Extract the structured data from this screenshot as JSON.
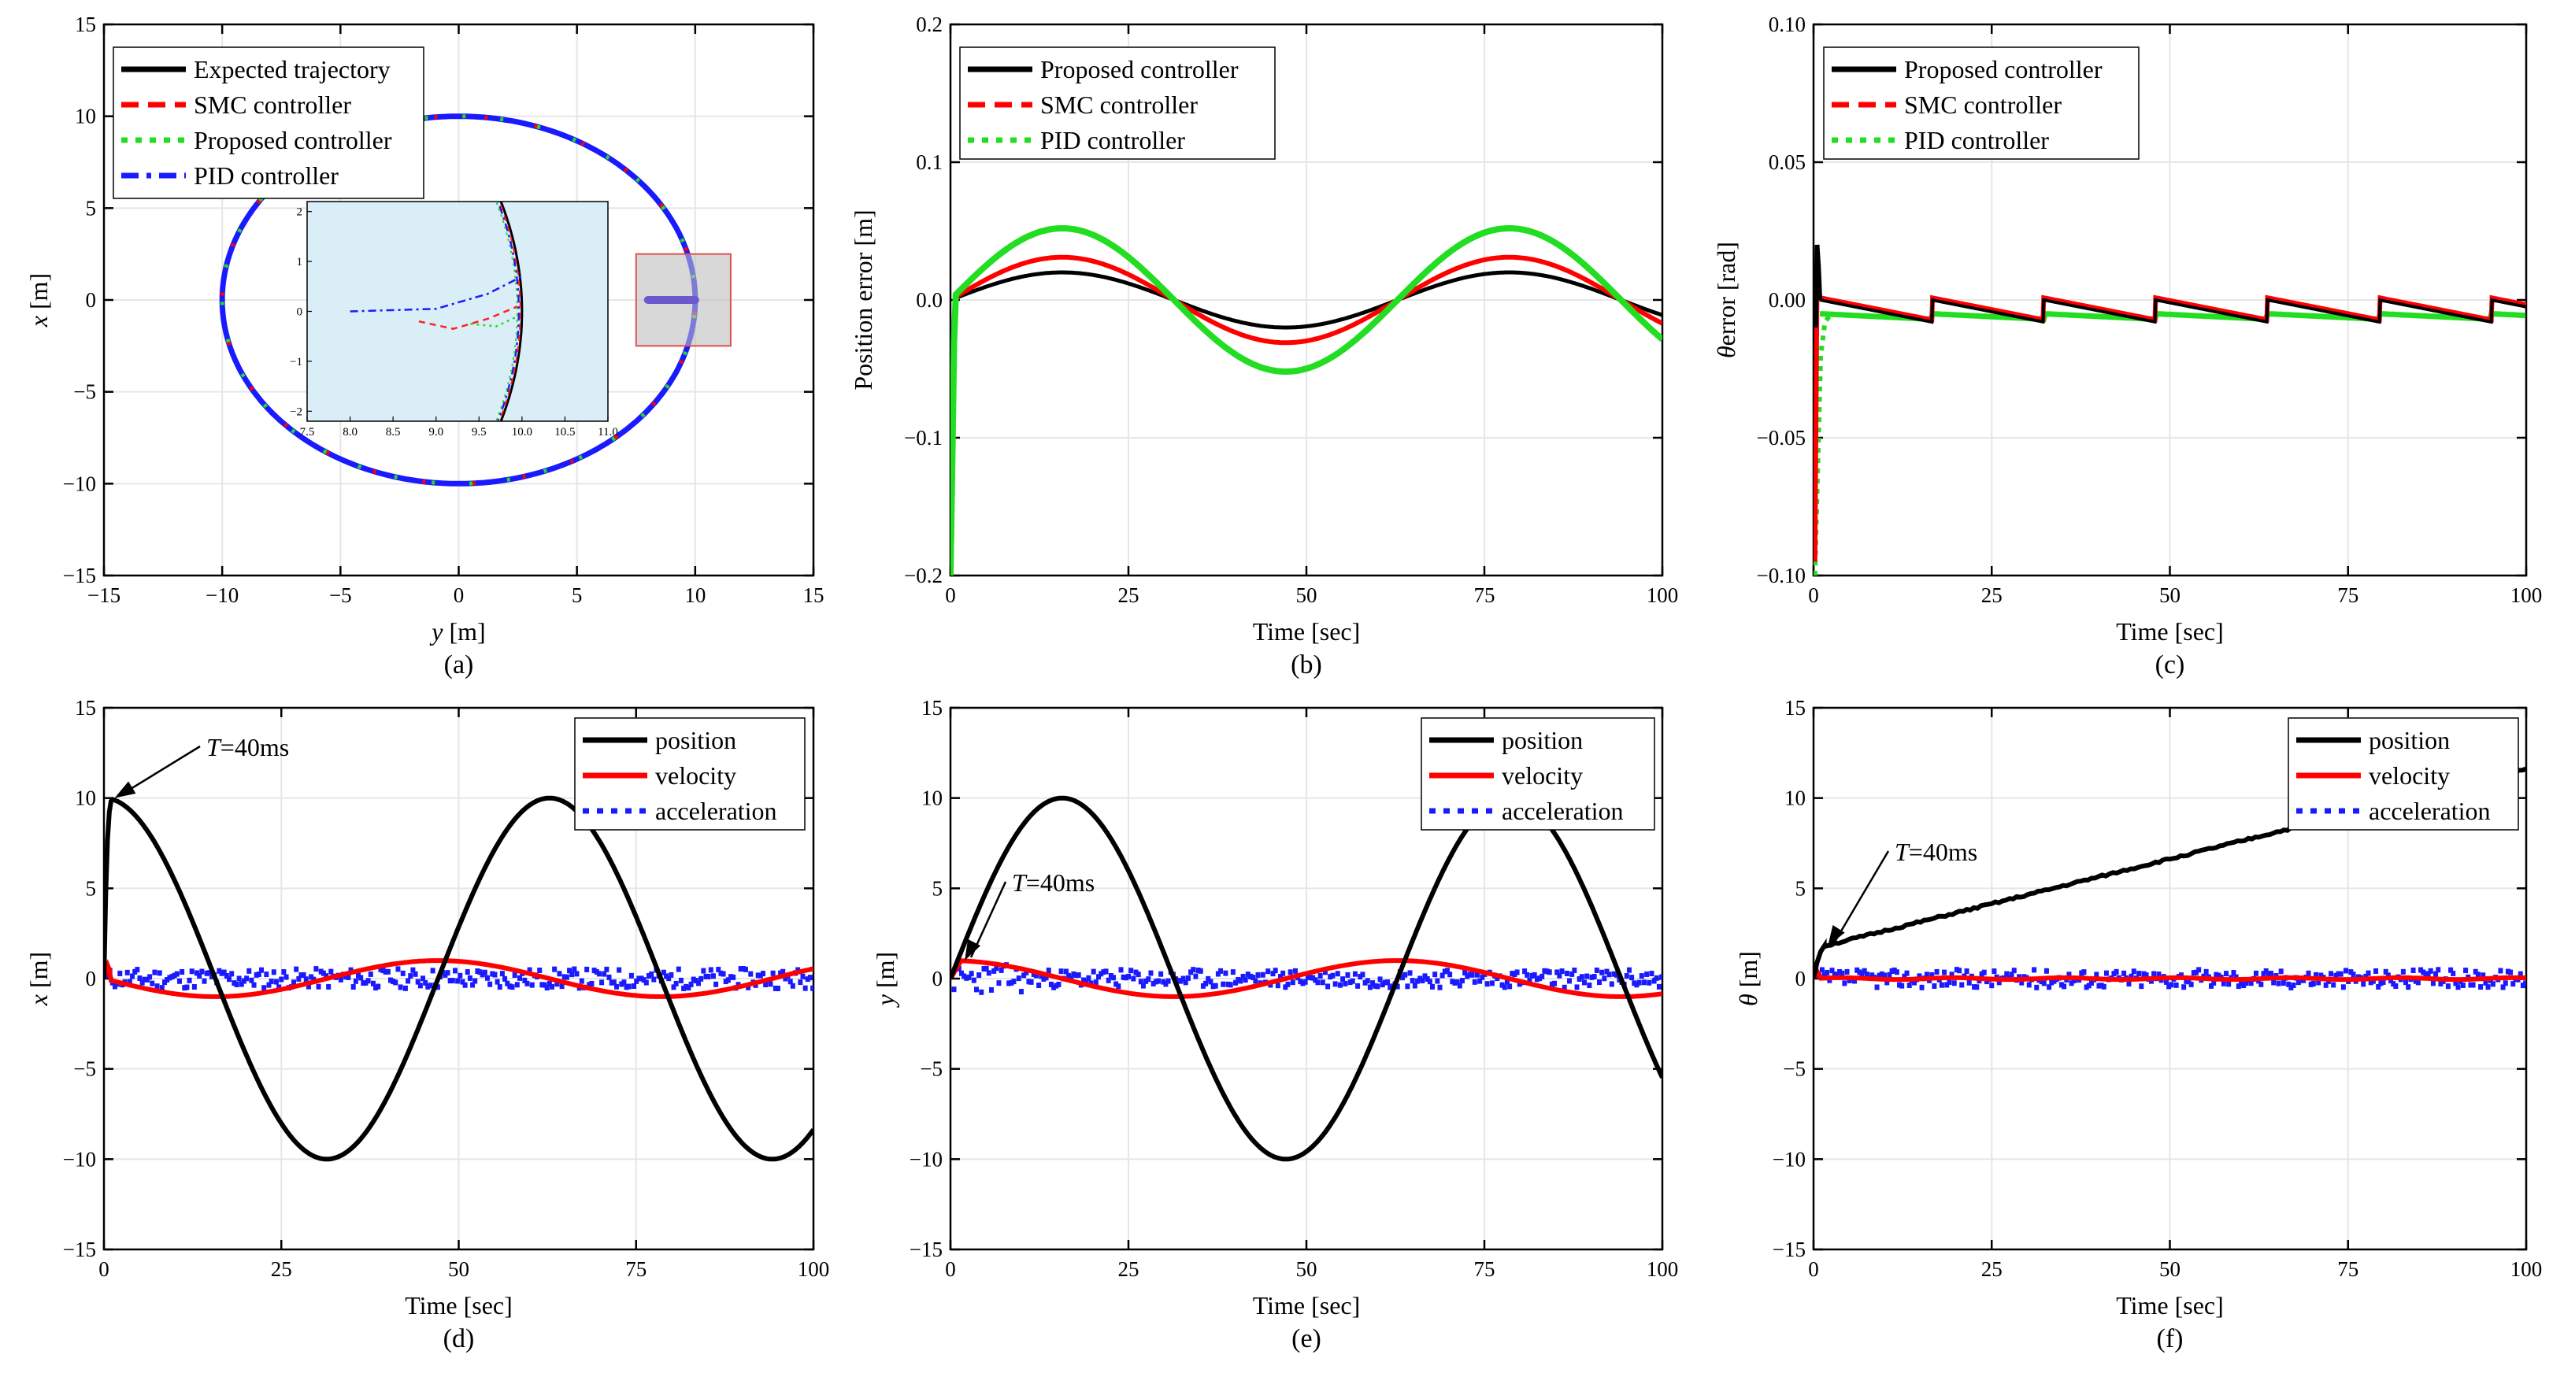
{
  "figure": {
    "panels": [
      "a",
      "b",
      "c",
      "d",
      "e",
      "f"
    ]
  },
  "chart_data": [
    {
      "id": "a",
      "type": "line",
      "caption": "(a)",
      "xlabel_var": "y",
      "xlabel_unit": " [m]",
      "ylabel_var": "x",
      "ylabel_unit": " [m]",
      "xlim": [
        -15,
        15
      ],
      "ylim": [
        -15,
        15
      ],
      "xticks": [
        -15,
        -10,
        -5,
        0,
        5,
        10,
        15
      ],
      "yticks": [
        -15,
        -10,
        -5,
        0,
        5,
        10,
        15
      ],
      "legend": [
        {
          "label": "Expected trajectory",
          "color": "#000000",
          "style": "solid"
        },
        {
          "label": "SMC controller",
          "color": "#ff0000",
          "style": "dash"
        },
        {
          "label": "Proposed controller",
          "color": "#22dd22",
          "style": "dot"
        },
        {
          "label": "PID controller",
          "color": "#1a1aff",
          "style": "dashdot"
        }
      ],
      "circle_center": [
        0,
        0
      ],
      "circle_radius": 10,
      "zoom_box": {
        "y_range": [
          7.5,
          11.5
        ],
        "x_range": [
          -2.5,
          2.5
        ]
      },
      "inset": {
        "xlim": [
          7.5,
          11.0
        ],
        "ylim": [
          -2.2,
          2.2
        ],
        "xticks": [
          7.5,
          8.0,
          8.5,
          9.0,
          9.5,
          10.0,
          10.5,
          11.0
        ],
        "yticks": [
          -2,
          -1,
          0,
          1,
          2
        ]
      }
    },
    {
      "id": "b",
      "type": "line",
      "caption": "(b)",
      "xlabel": "Time [sec]",
      "ylabel": "Position error [m]",
      "xlim": [
        0,
        100
      ],
      "ylim": [
        -0.2,
        0.2
      ],
      "xticks": [
        0,
        25,
        50,
        75,
        100
      ],
      "yticks": [
        -0.2,
        -0.1,
        0.0,
        0.1,
        0.2
      ],
      "ytick_labels": [
        "-0.2",
        "-0.1",
        "0.0",
        "0.1",
        "0.2"
      ],
      "legend": [
        {
          "label": "Proposed controller",
          "color": "#000000",
          "style": "solid"
        },
        {
          "label": "SMC controller",
          "color": "#ff0000",
          "style": "dash"
        },
        {
          "label": "PID controller",
          "color": "#22dd22",
          "style": "dot"
        }
      ],
      "series": [
        {
          "name": "Proposed controller",
          "amplitude": 0.02,
          "period": 62.8,
          "start": -0.2
        },
        {
          "name": "SMC controller",
          "amplitude": 0.031,
          "period": 62.8,
          "start": -0.18
        },
        {
          "name": "PID controller",
          "amplitude": 0.052,
          "period": 62.8,
          "start": -0.2
        }
      ]
    },
    {
      "id": "c",
      "type": "line",
      "caption": "(c)",
      "xlabel": "Time [sec]",
      "ylabel_var": "θ",
      "ylabel_unit": "error [rad]",
      "xlim": [
        0,
        100
      ],
      "ylim": [
        -0.1,
        0.1
      ],
      "xticks": [
        0,
        25,
        50,
        75,
        100
      ],
      "yticks": [
        -0.1,
        -0.05,
        0.0,
        0.05,
        0.1
      ],
      "ytick_labels": [
        "-0.10",
        "-0.05",
        "0.00",
        "0.05",
        "0.10"
      ],
      "legend": [
        {
          "label": "Proposed controller",
          "color": "#000000",
          "style": "solid"
        },
        {
          "label": "SMC controller",
          "color": "#ff0000",
          "style": "dash"
        },
        {
          "label": "PID controller",
          "color": "#22dd22",
          "style": "dot"
        }
      ],
      "sawtooth_period": 15.7,
      "sawtooth_high": 0.0,
      "sawtooth_low": -0.008,
      "pid_level": -0.005
    },
    {
      "id": "d",
      "type": "line",
      "caption": "(d)",
      "xlabel": "Time [sec]",
      "ylabel_var": "x",
      "ylabel_unit": " [m]",
      "xlim": [
        0,
        100
      ],
      "ylim": [
        -15,
        15
      ],
      "xticks": [
        0,
        25,
        50,
        75,
        100
      ],
      "yticks": [
        -15,
        -10,
        -5,
        0,
        5,
        10,
        15
      ],
      "legend": [
        {
          "label": "position",
          "color": "#000000",
          "style": "solid"
        },
        {
          "label": "velocity",
          "color": "#ff0000",
          "style": "solid"
        },
        {
          "label": "acceleration",
          "color": "#1a1aff",
          "style": "dot"
        }
      ],
      "annotation": {
        "var": "T",
        "text": "=40ms",
        "target": [
          1.5,
          10.0
        ]
      },
      "position_amp": 10,
      "position_period": 62.8,
      "position_phase": "cos",
      "velocity_amp": 1.0
    },
    {
      "id": "e",
      "type": "line",
      "caption": "(e)",
      "xlabel": "Time [sec]",
      "ylabel_var": "y",
      "ylabel_unit": " [m]",
      "xlim": [
        0,
        100
      ],
      "ylim": [
        -15,
        15
      ],
      "xticks": [
        0,
        25,
        50,
        75,
        100
      ],
      "yticks": [
        -15,
        -10,
        -5,
        0,
        5,
        10,
        15
      ],
      "legend": [
        {
          "label": "position",
          "color": "#000000",
          "style": "solid"
        },
        {
          "label": "velocity",
          "color": "#ff0000",
          "style": "solid"
        },
        {
          "label": "acceleration",
          "color": "#1a1aff",
          "style": "dot"
        }
      ],
      "annotation": {
        "var": "T",
        "text": "=40ms",
        "target": [
          2.0,
          1.0
        ]
      },
      "position_amp": 10,
      "position_period": 62.8,
      "position_phase": "sin",
      "velocity_amp": 1.0
    },
    {
      "id": "f",
      "type": "line",
      "caption": "(f)",
      "xlabel": "Time [sec]",
      "ylabel_var": "θ",
      "ylabel_unit": " [m]",
      "xlim": [
        0,
        100
      ],
      "ylim": [
        -15,
        15
      ],
      "xticks": [
        0,
        25,
        50,
        75,
        100
      ],
      "yticks": [
        -15,
        -10,
        -5,
        0,
        5,
        10,
        15
      ],
      "legend": [
        {
          "label": "position",
          "color": "#000000",
          "style": "solid"
        },
        {
          "label": "velocity",
          "color": "#ff0000",
          "style": "solid"
        },
        {
          "label": "acceleration",
          "color": "#1a1aff",
          "style": "dot"
        }
      ],
      "annotation": {
        "var": "T",
        "text": "=40ms",
        "target": [
          2.0,
          1.8
        ]
      },
      "position_start": 1.8,
      "position_end": 11.6
    }
  ]
}
